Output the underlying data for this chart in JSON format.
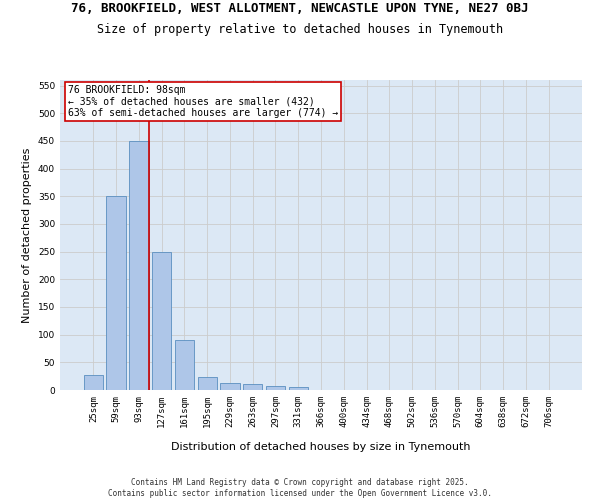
{
  "title": "76, BROOKFIELD, WEST ALLOTMENT, NEWCASTLE UPON TYNE, NE27 0BJ",
  "subtitle": "Size of property relative to detached houses in Tynemouth",
  "xlabel": "Distribution of detached houses by size in Tynemouth",
  "ylabel": "Number of detached properties",
  "categories": [
    "25sqm",
    "59sqm",
    "93sqm",
    "127sqm",
    "161sqm",
    "195sqm",
    "229sqm",
    "263sqm",
    "297sqm",
    "331sqm",
    "366sqm",
    "400sqm",
    "434sqm",
    "468sqm",
    "502sqm",
    "536sqm",
    "570sqm",
    "604sqm",
    "638sqm",
    "672sqm",
    "706sqm"
  ],
  "values": [
    27,
    350,
    450,
    250,
    90,
    23,
    13,
    10,
    7,
    5,
    0,
    0,
    0,
    0,
    0,
    0,
    0,
    0,
    0,
    0,
    0
  ],
  "bar_color": "#aec6e8",
  "bar_edge_color": "#5a8fc0",
  "grid_color": "#cccccc",
  "background_color": "#dce8f5",
  "annotation_text": "76 BROOKFIELD: 98sqm\n← 35% of detached houses are smaller (432)\n63% of semi-detached houses are larger (774) →",
  "annotation_box_color": "#ffffff",
  "annotation_box_edge_color": "#cc0000",
  "red_line_color": "#cc0000",
  "red_line_index": 2,
  "footer_text": "Contains HM Land Registry data © Crown copyright and database right 2025.\nContains public sector information licensed under the Open Government Licence v3.0.",
  "ylim": [
    0,
    560
  ],
  "yticks": [
    0,
    50,
    100,
    150,
    200,
    250,
    300,
    350,
    400,
    450,
    500,
    550
  ],
  "title_fontsize": 9,
  "subtitle_fontsize": 8.5,
  "ylabel_fontsize": 8,
  "xlabel_fontsize": 8,
  "tick_fontsize": 6.5,
  "annotation_fontsize": 7,
  "footer_fontsize": 5.5
}
